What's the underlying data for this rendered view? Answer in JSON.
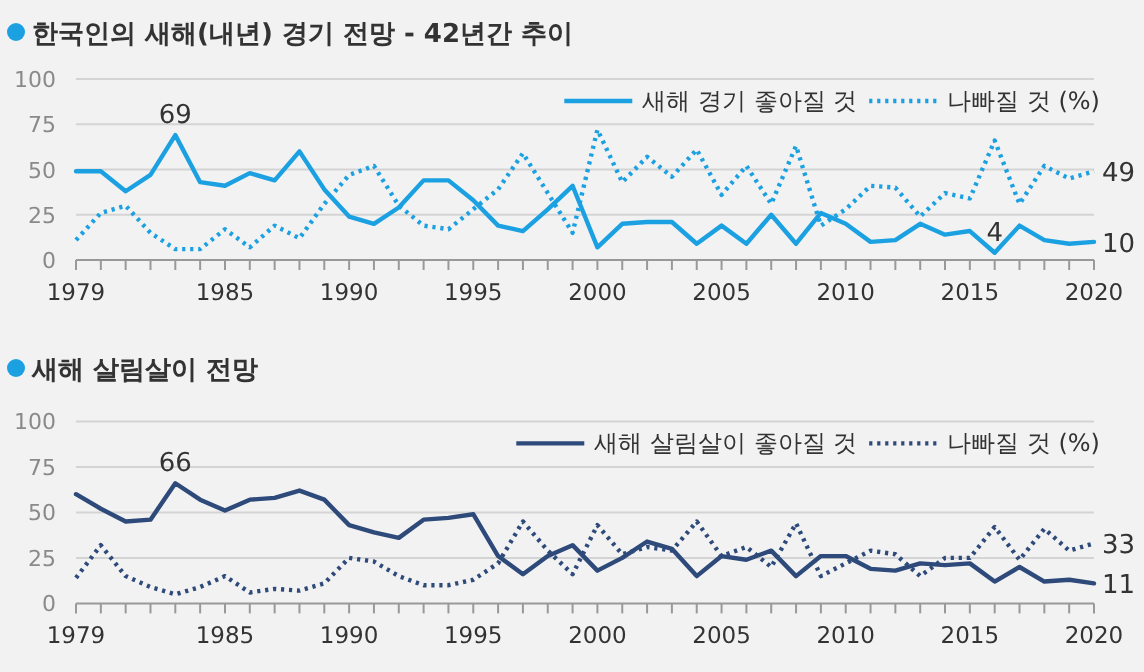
{
  "chart_data": [
    {
      "type": "line",
      "title": "한국인의 새해(내년) 경기 전망 - 42년간 추이",
      "x": [
        1979,
        1980,
        1981,
        1982,
        1983,
        1984,
        1985,
        1986,
        1987,
        1988,
        1989,
        1990,
        1991,
        1992,
        1993,
        1994,
        1995,
        1996,
        1997,
        1998,
        1999,
        2000,
        2001,
        2002,
        2003,
        2004,
        2005,
        2006,
        2007,
        2008,
        2009,
        2010,
        2011,
        2012,
        2013,
        2014,
        2015,
        2016,
        2017,
        2018,
        2019,
        2020
      ],
      "series": [
        {
          "name": "새해 경기 좋아질 것",
          "color": "#1ba1e2",
          "line_style": "solid",
          "values": [
            49,
            49,
            38,
            47,
            69,
            43,
            41,
            48,
            44,
            60,
            39,
            24,
            20,
            29,
            44,
            44,
            33,
            19,
            16,
            28,
            41,
            7,
            20,
            21,
            21,
            9,
            19,
            9,
            25,
            9,
            26,
            20,
            10,
            11,
            20,
            14,
            16,
            4,
            19,
            11,
            9,
            10
          ]
        },
        {
          "name": "나빠질 것 (%)",
          "color": "#1ba1e2",
          "line_style": "dotted",
          "values": [
            11,
            26,
            30,
            15,
            6,
            6,
            17,
            7,
            19,
            12,
            31,
            47,
            52,
            30,
            19,
            17,
            28,
            39,
            59,
            37,
            15,
            72,
            43,
            57,
            46,
            61,
            36,
            52,
            31,
            63,
            19,
            28,
            41,
            40,
            24,
            37,
            34,
            66,
            31,
            52,
            45,
            49
          ]
        }
      ],
      "xlim": [
        1979,
        2020
      ],
      "ylim": [
        0,
        100
      ],
      "yticks": [
        0,
        25,
        50,
        75,
        100
      ],
      "xticks": [
        1979,
        {
          "value": 1980,
          "label": null
        },
        {
          "value": 1981,
          "label": null
        },
        {
          "value": 1982,
          "label": null
        },
        {
          "value": 1983,
          "label": null
        },
        {
          "value": 1984,
          "label": null
        },
        1985,
        {
          "value": 1986,
          "label": null
        },
        {
          "value": 1987,
          "label": null
        },
        {
          "value": 1988,
          "label": null
        },
        {
          "value": 1989,
          "label": null
        },
        1990,
        {
          "value": 1991,
          "label": null
        },
        {
          "value": 1992,
          "label": null
        },
        {
          "value": 1993,
          "label": null
        },
        {
          "value": 1994,
          "label": null
        },
        1995,
        {
          "value": 1996,
          "label": null
        },
        {
          "value": 1997,
          "label": null
        },
        {
          "value": 1998,
          "label": null
        },
        {
          "value": 1999,
          "label": null
        },
        2000,
        {
          "value": 2001,
          "label": null
        },
        {
          "value": 2002,
          "label": null
        },
        {
          "value": 2003,
          "label": null
        },
        {
          "value": 2004,
          "label": null
        },
        2005,
        {
          "value": 2006,
          "label": null
        },
        {
          "value": 2007,
          "label": null
        },
        {
          "value": 2008,
          "label": null
        },
        {
          "value": 2009,
          "label": null
        },
        2010,
        {
          "value": 2011,
          "label": null
        },
        {
          "value": 2012,
          "label": null
        },
        {
          "value": 2013,
          "label": null
        },
        {
          "value": 2014,
          "label": null
        },
        2015,
        {
          "value": 2016,
          "label": null
        },
        {
          "value": 2017,
          "label": null
        },
        {
          "value": 2018,
          "label": null
        },
        {
          "value": 2019,
          "label": null
        },
        2020
      ],
      "grid": "y",
      "legend": "top right",
      "marker": "none",
      "annotations": [
        {
          "text": "69",
          "x": 1983,
          "y": 69
        },
        {
          "text": "4",
          "x": 2016,
          "y": 4
        },
        {
          "text": "49",
          "x": 2020,
          "y": 49
        },
        {
          "text": "10",
          "x": 2020,
          "y": 10
        }
      ]
    },
    {
      "type": "line",
      "title": "새해 살림살이 전망",
      "x": [
        1979,
        1980,
        1981,
        1982,
        1983,
        1984,
        1985,
        1986,
        1987,
        1988,
        1989,
        1990,
        1991,
        1992,
        1993,
        1994,
        1995,
        1996,
        1997,
        1998,
        1999,
        2000,
        2001,
        2002,
        2003,
        2004,
        2005,
        2006,
        2007,
        2008,
        2009,
        2010,
        2011,
        2012,
        2013,
        2014,
        2015,
        2016,
        2017,
        2018,
        2019,
        2020
      ],
      "series": [
        {
          "name": "새해 살림살이 좋아질 것",
          "color": "#2e4a7a",
          "line_style": "solid",
          "values": [
            60,
            52,
            45,
            46,
            66,
            57,
            51,
            57,
            58,
            62,
            57,
            43,
            39,
            36,
            46,
            47,
            49,
            26,
            16,
            26,
            32,
            18,
            25,
            34,
            30,
            15,
            26,
            24,
            29,
            15,
            26,
            26,
            19,
            18,
            22,
            21,
            22,
            12,
            20,
            12,
            13,
            11
          ]
        },
        {
          "name": "나빠질 것 (%)",
          "color": "#2e4a7a",
          "line_style": "dotted",
          "values": [
            14,
            32,
            15,
            9,
            5,
            9,
            15,
            6,
            8,
            7,
            11,
            25,
            23,
            15,
            10,
            10,
            13,
            22,
            45,
            29,
            16,
            43,
            27,
            31,
            29,
            45,
            26,
            31,
            20,
            44,
            15,
            22,
            29,
            27,
            15,
            25,
            25,
            42,
            24,
            41,
            29,
            33
          ]
        }
      ],
      "xlim": [
        1979,
        2020
      ],
      "ylim": [
        0,
        100
      ],
      "yticks": [
        0,
        25,
        50,
        75,
        100
      ],
      "xticks": [
        1979,
        {
          "value": 1980,
          "label": null
        },
        {
          "value": 1981,
          "label": null
        },
        {
          "value": 1982,
          "label": null
        },
        {
          "value": 1983,
          "label": null
        },
        {
          "value": 1984,
          "label": null
        },
        1985,
        {
          "value": 1986,
          "label": null
        },
        {
          "value": 1987,
          "label": null
        },
        {
          "value": 1988,
          "label": null
        },
        {
          "value": 1989,
          "label": null
        },
        1990,
        {
          "value": 1991,
          "label": null
        },
        {
          "value": 1992,
          "label": null
        },
        {
          "value": 1993,
          "label": null
        },
        {
          "value": 1994,
          "label": null
        },
        1995,
        {
          "value": 1996,
          "label": null
        },
        {
          "value": 1997,
          "label": null
        },
        {
          "value": 1998,
          "label": null
        },
        {
          "value": 1999,
          "label": null
        },
        2000,
        {
          "value": 2001,
          "label": null
        },
        {
          "value": 2002,
          "label": null
        },
        {
          "value": 2003,
          "label": null
        },
        {
          "value": 2004,
          "label": null
        },
        2005,
        {
          "value": 2006,
          "label": null
        },
        {
          "value": 2007,
          "label": null
        },
        {
          "value": 2008,
          "label": null
        },
        {
          "value": 2009,
          "label": null
        },
        2010,
        {
          "value": 2011,
          "label": null
        },
        {
          "value": 2012,
          "label": null
        },
        {
          "value": 2013,
          "label": null
        },
        {
          "value": 2014,
          "label": null
        },
        2015,
        {
          "value": 2016,
          "label": null
        },
        {
          "value": 2017,
          "label": null
        },
        {
          "value": 2018,
          "label": null
        },
        {
          "value": 2019,
          "label": null
        },
        2020
      ],
      "grid": "y",
      "legend": "top right",
      "marker": "none",
      "annotations": [
        {
          "text": "66",
          "x": 1983,
          "y": 66
        },
        {
          "text": "33",
          "x": 2020,
          "y": 33
        },
        {
          "text": "11",
          "x": 2020,
          "y": 11
        }
      ]
    }
  ]
}
